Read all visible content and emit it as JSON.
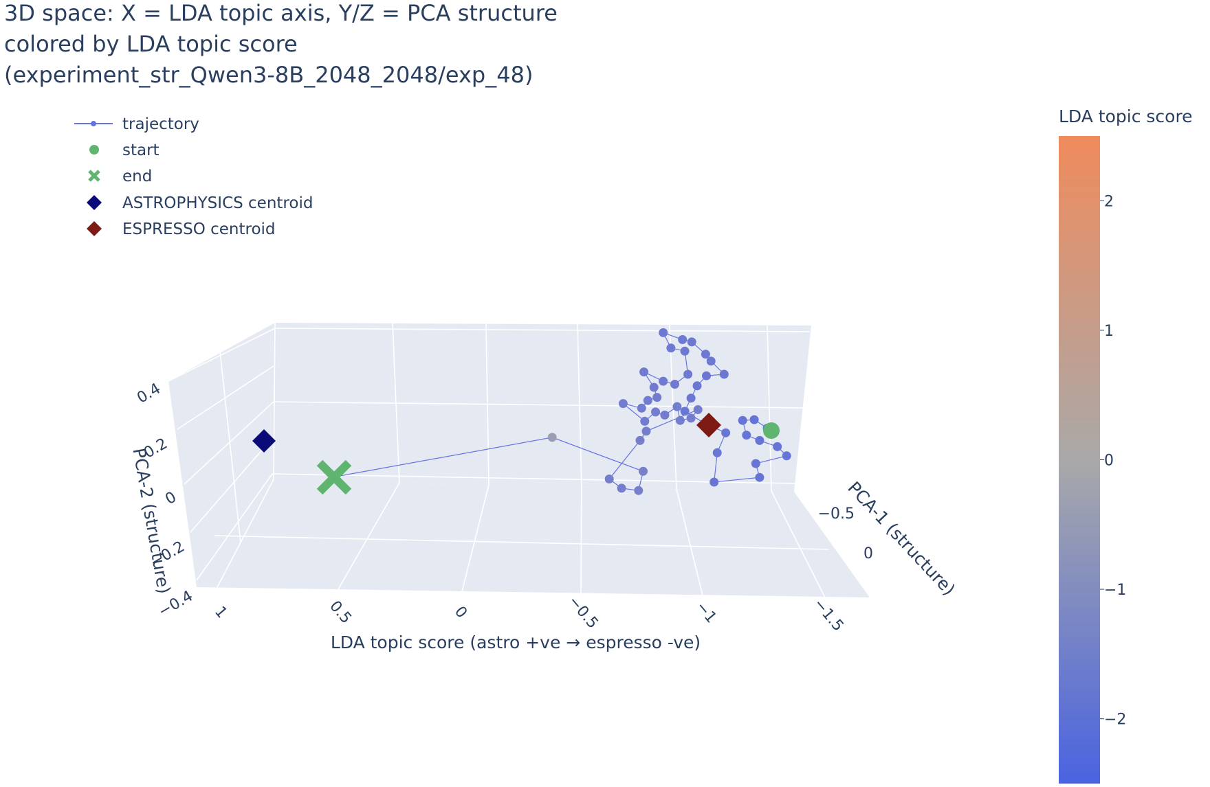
{
  "chart_data": {
    "type": "scatter",
    "title_lines": [
      "3D space: X = LDA topic axis, Y/Z = PCA structure",
      "colored by LDA topic score",
      "(experiment_str_Qwen3-8B_2048_2048/exp_48)"
    ],
    "legend": [
      {
        "label": "trajectory",
        "symbol": "line-marker",
        "color": "#6674e0"
      },
      {
        "label": "start",
        "symbol": "circle",
        "color": "#5fb46f"
      },
      {
        "label": "end",
        "symbol": "x",
        "color": "#5fb46f"
      },
      {
        "label": "ASTROPHYSICS centroid",
        "symbol": "diamond",
        "color": "#0a0a78"
      },
      {
        "label": "ESPRESSO centroid",
        "symbol": "diamond",
        "color": "#7e1a14"
      }
    ],
    "axes": {
      "x": {
        "title": "LDA topic score (astro +ve → espresso -ve)",
        "ticks": [
          "1",
          "0.5",
          "0",
          "−0.5",
          "−1",
          "−1.5"
        ]
      },
      "y": {
        "title": "PCA-1 (structure)",
        "ticks": [
          "−0.5",
          "0"
        ]
      },
      "z": {
        "title": "PCA-2 (structure)",
        "ticks": [
          "0.4",
          "0.2",
          "0",
          "−0.2",
          "−0.4"
        ]
      }
    },
    "colorbar": {
      "title": "LDA topic score",
      "range": [
        -2.5,
        2.5
      ],
      "ticks": [
        "2",
        "1",
        "0",
        "−1",
        "−2"
      ],
      "tick_values": [
        2,
        1,
        0,
        -1,
        -2
      ],
      "colors": [
        "#4a63e0",
        "#a9a9a9",
        "#f08b5c"
      ]
    },
    "trajectory_projected_points": [
      [
        995,
        556
      ],
      [
        978,
        545
      ],
      [
        963,
        546
      ],
      [
        968,
        565
      ],
      [
        985,
        572
      ],
      [
        1008,
        580
      ],
      [
        1020,
        592
      ],
      [
        980,
        602
      ],
      [
        985,
        620
      ],
      [
        926,
        626
      ],
      [
        930,
        588
      ],
      [
        941,
        562
      ],
      [
        914,
        550
      ],
      [
        888,
        534
      ],
      [
        896,
        517
      ],
      [
        904,
        501
      ],
      [
        916,
        488
      ],
      [
        939,
        486
      ],
      [
        922,
        469
      ],
      [
        915,
        460
      ],
      [
        897,
        444
      ],
      [
        885,
        441
      ],
      [
        860,
        432
      ],
      [
        870,
        452
      ],
      [
        888,
        456
      ],
      [
        892,
        486
      ],
      [
        875,
        499
      ],
      [
        860,
        495
      ],
      [
        835,
        483
      ],
      [
        848,
        503
      ],
      [
        852,
        516
      ],
      [
        840,
        520
      ],
      [
        832,
        530
      ],
      [
        808,
        524
      ],
      [
        836,
        547
      ],
      [
        850,
        535
      ],
      [
        862,
        539
      ],
      [
        878,
        528
      ],
      [
        882,
        546
      ],
      [
        896,
        543
      ],
      [
        905,
        532
      ],
      [
        838,
        560
      ],
      [
        830,
        572
      ],
      [
        790,
        622
      ],
      [
        806,
        634
      ],
      [
        828,
        637
      ],
      [
        834,
        612
      ],
      [
        716,
        568
      ],
      [
        430,
        620
      ]
    ],
    "start": "start",
    "end": "end"
  }
}
